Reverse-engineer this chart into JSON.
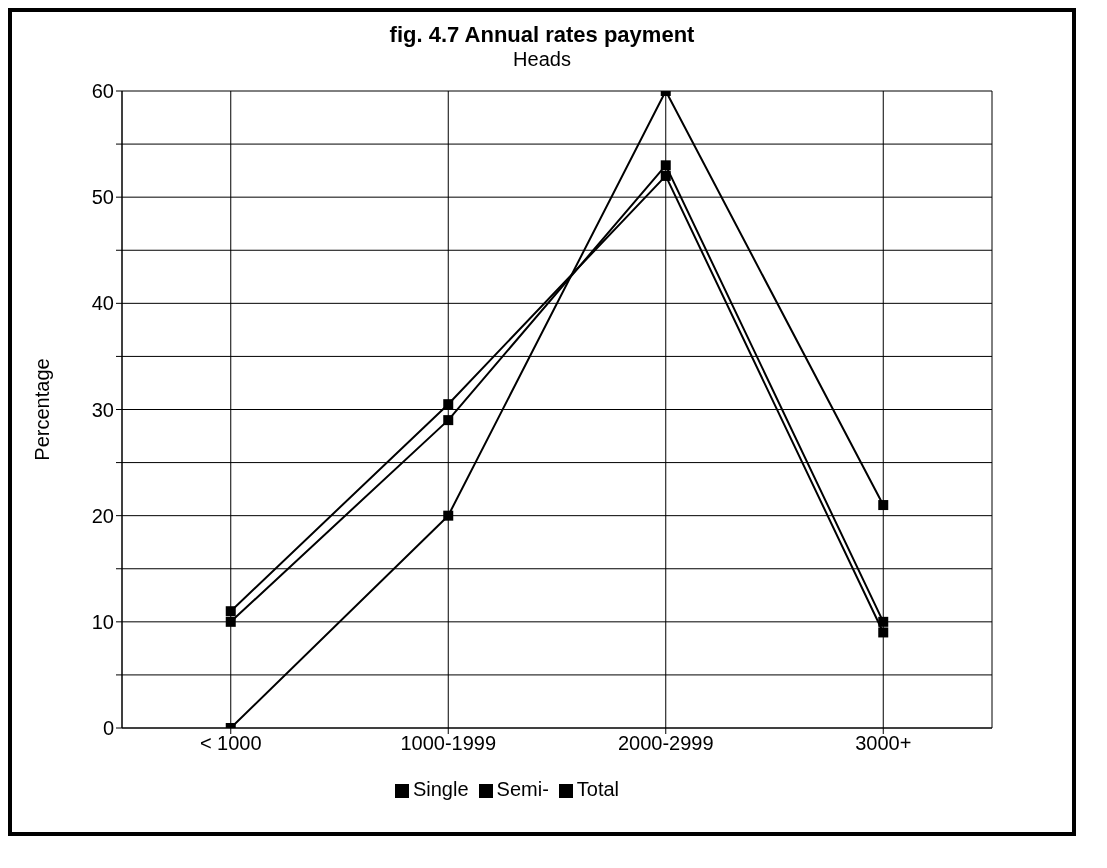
{
  "chart_data": {
    "type": "line",
    "title": "fig. 4.7  Annual rates payment",
    "subtitle": "Heads",
    "ylabel": "Percentage",
    "categories": [
      "< 1000",
      "1000-1999",
      "2000-2999",
      "3000+"
    ],
    "series": [
      {
        "name": "Single",
        "color": "#000000",
        "values": [
          0,
          20,
          60,
          21
        ]
      },
      {
        "name": "Semi-",
        "color": "#000000",
        "values": [
          11,
          30.5,
          52,
          9
        ]
      },
      {
        "name": "Total",
        "color": "#000000",
        "values": [
          10,
          29,
          53,
          10
        ]
      }
    ],
    "ylim": [
      0,
      60
    ],
    "yticks": [
      0,
      {
        "value": 5,
        "label": null
      },
      10,
      {
        "value": 15,
        "label": null
      },
      20,
      {
        "value": 25,
        "label": null
      },
      30,
      {
        "value": 35,
        "label": null
      },
      40,
      {
        "value": 45,
        "label": null
      },
      50,
      {
        "value": 55,
        "label": null
      },
      60
    ],
    "grid": true,
    "legend": "bottom",
    "marker": "square",
    "line_style": "solid"
  }
}
